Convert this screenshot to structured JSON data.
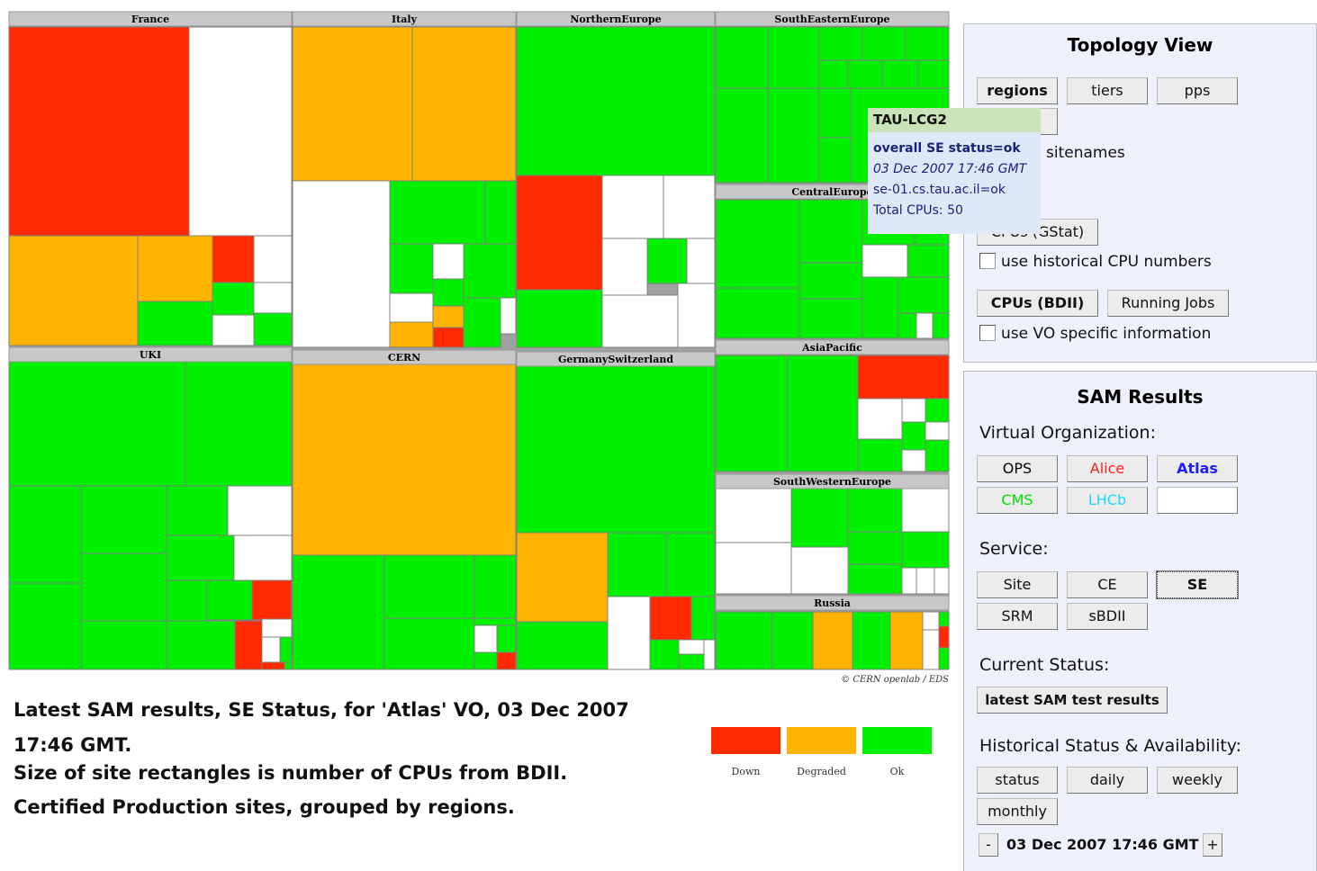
{
  "treemap": {
    "regions": [
      {
        "name": "France"
      },
      {
        "name": "Italy"
      },
      {
        "name": "NorthernEurope"
      },
      {
        "name": "SouthEasternEurope"
      },
      {
        "name": "CentralEurope"
      },
      {
        "name": "AsiaPacific"
      },
      {
        "name": "SouthWesternEurope"
      },
      {
        "name": "Russia"
      },
      {
        "name": "UKI"
      },
      {
        "name": "CERN"
      },
      {
        "name": "GermanySwitzerland"
      }
    ],
    "copyright": "© CERN openlab / EDS"
  },
  "tooltip": {
    "title": "TAU-LCG2",
    "status": "overall SE status=ok",
    "date": "03 Dec 2007 17:46 GMT",
    "service": "se-01.cs.tau.ac.il=ok",
    "cpus": "Total CPUs: 50"
  },
  "caption": {
    "line1": "Latest SAM results, SE Status, for 'Atlas' VO, 03 Dec 2007 17:46 GMT.",
    "line2": "Size of site rectangles is number of CPUs from BDII.",
    "line3": "Certified Production sites, grouped by regions."
  },
  "legend": [
    {
      "label": "Down",
      "color": "#ff2a00"
    },
    {
      "label": "Degraded",
      "color": "#ffb400"
    },
    {
      "label": "Ok",
      "color": "#00f000"
    }
  ],
  "topology": {
    "title": "Topology View",
    "buttons": [
      "regions",
      "tiers",
      "pps"
    ],
    "sitenames": "sitenames",
    "gstat": "CPUs (GStat)",
    "historical": "use historical CPU numbers",
    "bdii": "CPUs (BDII)",
    "jobs": "Running Jobs",
    "vo_specific": "use VO specific information"
  },
  "sam": {
    "title": "SAM Results",
    "vo_label": "Virtual Organization:",
    "vos": [
      {
        "name": "OPS",
        "color": "#000000"
      },
      {
        "name": "Alice",
        "color": "#ff2020"
      },
      {
        "name": "Atlas",
        "color": "#2020ff"
      },
      {
        "name": "CMS",
        "color": "#00e000"
      },
      {
        "name": "LHCb",
        "color": "#20d8ff"
      }
    ],
    "service_label": "Service:",
    "services": [
      "Site",
      "CE",
      "SE",
      "SRM",
      "sBDII"
    ],
    "current_label": "Current Status:",
    "current_button": "latest SAM test results",
    "history_label": "Historical Status & Availability:",
    "history_buttons": [
      "status",
      "daily",
      "weekly",
      "monthly"
    ],
    "minus": "-",
    "date": "03 Dec 2007 17:46 GMT",
    "plus": "+"
  }
}
